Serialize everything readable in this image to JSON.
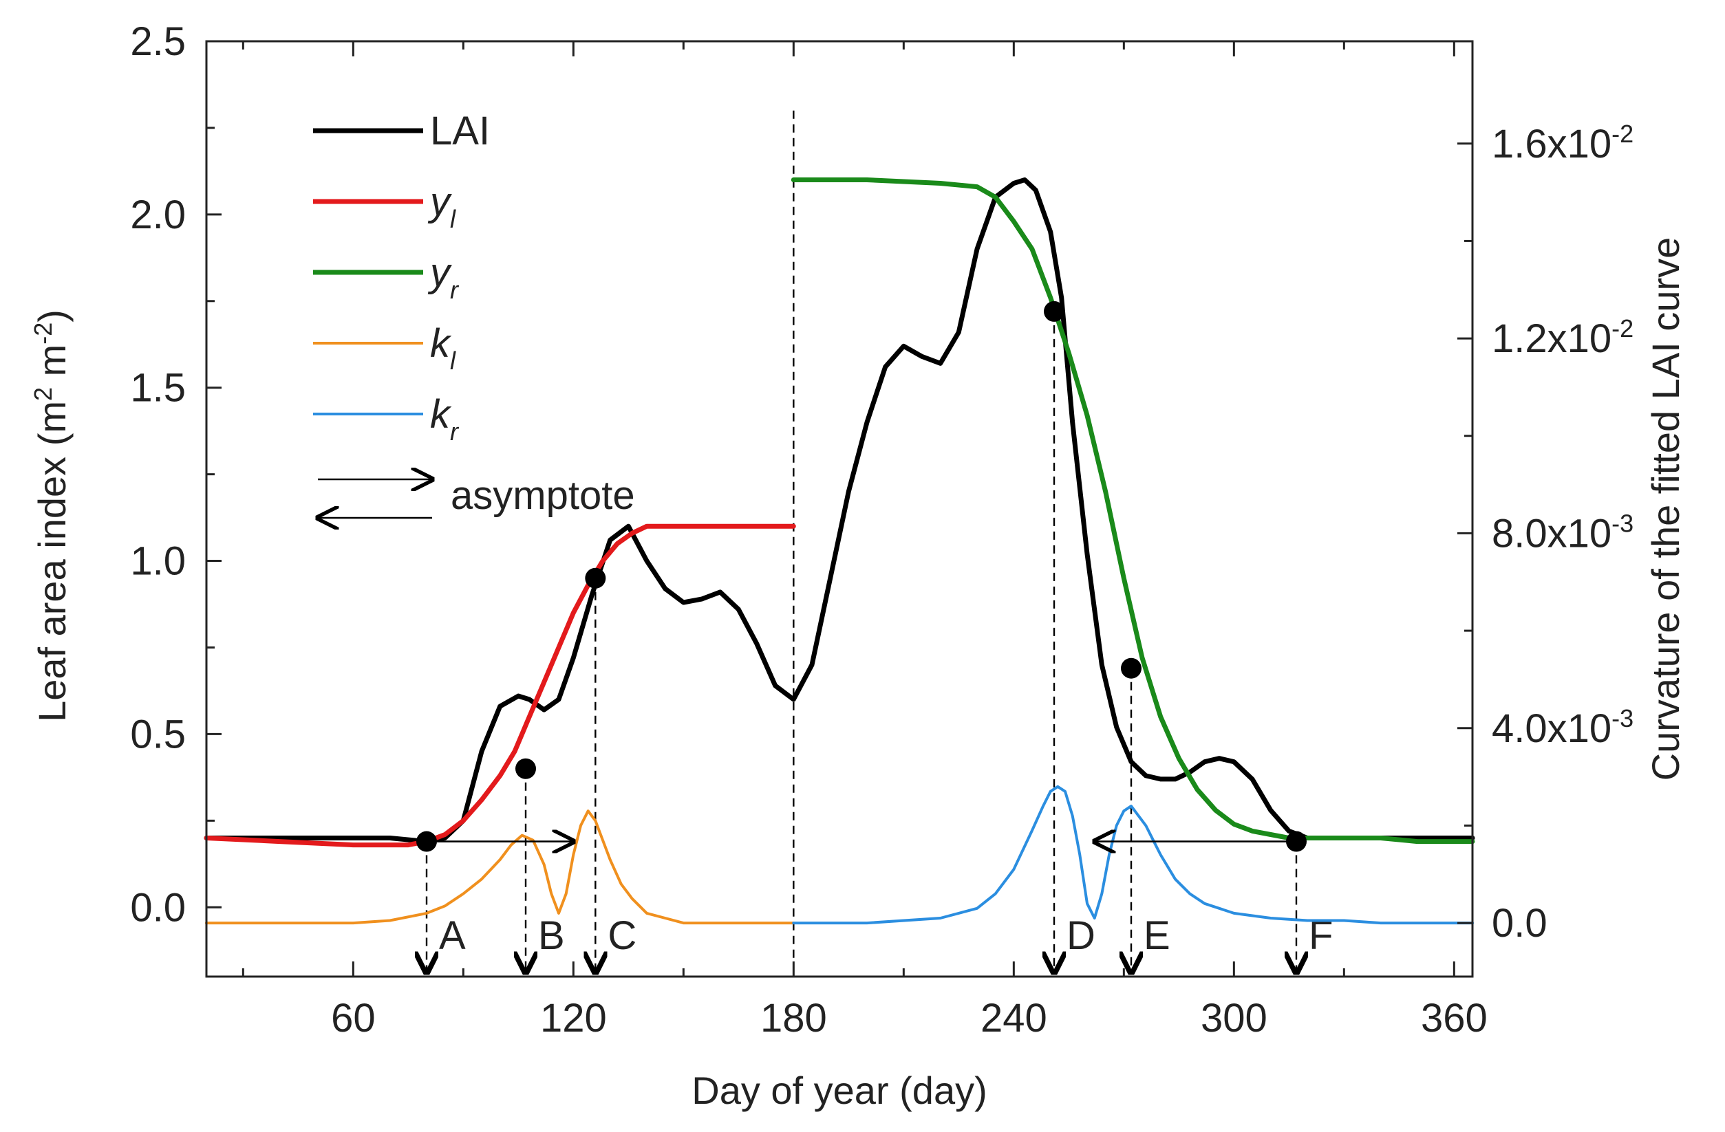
{
  "chart_data": {
    "type": "line",
    "title": "",
    "xlabel": "Day of year (day)",
    "ylabel": "Leaf area index (m² m⁻²)",
    "ylabel_parts": {
      "pre": "Leaf area index (m",
      "sup1": "2",
      "mid": " m",
      "sup2": "-2",
      "post": ")"
    },
    "y2label": "Curvature of the fitted LAI curve",
    "xlim": [
      20,
      365
    ],
    "ylim": [
      -0.2,
      2.5
    ],
    "y2lim": [
      -0.0011,
      0.0181
    ],
    "xticks": [
      60,
      120,
      180,
      240,
      300,
      360
    ],
    "xtick_labels": [
      "60",
      "120",
      "180",
      "240",
      "300",
      "360"
    ],
    "xticks_minor": [
      30,
      90,
      150,
      210,
      270,
      330
    ],
    "yticks": [
      0.0,
      0.5,
      1.0,
      1.5,
      2.0,
      2.5
    ],
    "ytick_labels": [
      "0.0",
      "0.5",
      "1.0",
      "1.5",
      "2.0",
      "2.5"
    ],
    "yticks_minor": [
      0.25,
      0.75,
      1.25,
      1.75,
      2.25
    ],
    "y2ticks": [
      0.0,
      0.004,
      0.008,
      0.012,
      0.016
    ],
    "y2tick_labels": [
      {
        "base": "0.0",
        "exp": ""
      },
      {
        "base": "4.0x10",
        "exp": "-3"
      },
      {
        "base": "8.0x10",
        "exp": "-3"
      },
      {
        "base": "1.2x10",
        "exp": "-2"
      },
      {
        "base": "1.6x10",
        "exp": "-2"
      }
    ],
    "y2ticks_minor": [
      0.002,
      0.006,
      0.01,
      0.014
    ],
    "legend": {
      "placement": "top-left",
      "entries": [
        {
          "key": "lai",
          "label": "LAI",
          "sub": "",
          "color": "#000000"
        },
        {
          "key": "yl",
          "label": "y",
          "sub": "l",
          "color": "#e31a1c"
        },
        {
          "key": "yr",
          "label": "y",
          "sub": "r",
          "color": "#1a8a1a"
        },
        {
          "key": "kl",
          "label": "k",
          "sub": "l",
          "color": "#f0901e"
        },
        {
          "key": "kr",
          "label": "k",
          "sub": "r",
          "color": "#2b8ee0"
        }
      ],
      "arrow_label": "asymptote"
    },
    "series": [
      {
        "name": "LAI",
        "axis": "left",
        "color": "#000000",
        "x": [
          20,
          40,
          60,
          70,
          80,
          85,
          90,
          95,
          100,
          105,
          108,
          112,
          116,
          120,
          125,
          130,
          135,
          140,
          145,
          150,
          155,
          160,
          165,
          170,
          175,
          180,
          185,
          190,
          195,
          200,
          205,
          210,
          215,
          220,
          225,
          230,
          235,
          240,
          243,
          246,
          250,
          253,
          256,
          260,
          264,
          268,
          272,
          276,
          280,
          284,
          288,
          292,
          296,
          300,
          305,
          310,
          315,
          320,
          325,
          330,
          340,
          350,
          360,
          365
        ],
        "y": [
          0.2,
          0.2,
          0.2,
          0.2,
          0.19,
          0.2,
          0.25,
          0.45,
          0.58,
          0.61,
          0.6,
          0.57,
          0.6,
          0.72,
          0.9,
          1.06,
          1.1,
          1.0,
          0.92,
          0.88,
          0.89,
          0.91,
          0.86,
          0.76,
          0.64,
          0.6,
          0.7,
          0.95,
          1.2,
          1.4,
          1.56,
          1.62,
          1.59,
          1.57,
          1.66,
          1.9,
          2.05,
          2.09,
          2.1,
          2.07,
          1.95,
          1.76,
          1.4,
          1.02,
          0.7,
          0.52,
          0.42,
          0.38,
          0.37,
          0.37,
          0.39,
          0.42,
          0.43,
          0.42,
          0.37,
          0.28,
          0.22,
          0.2,
          0.2,
          0.2,
          0.2,
          0.2,
          0.2,
          0.2
        ]
      },
      {
        "name": "yl",
        "axis": "left",
        "color": "#e31a1c",
        "x": [
          20,
          30,
          40,
          50,
          60,
          70,
          75,
          80,
          85,
          90,
          95,
          100,
          104,
          108,
          112,
          116,
          120,
          124,
          128,
          132,
          136,
          140,
          145,
          150,
          160,
          170,
          180
        ],
        "y": [
          0.2,
          0.195,
          0.19,
          0.185,
          0.18,
          0.18,
          0.18,
          0.19,
          0.21,
          0.25,
          0.31,
          0.38,
          0.45,
          0.55,
          0.65,
          0.75,
          0.85,
          0.93,
          1.0,
          1.05,
          1.08,
          1.1,
          1.1,
          1.1,
          1.1,
          1.1,
          1.1
        ]
      },
      {
        "name": "yr",
        "axis": "left",
        "color": "#1a8a1a",
        "x": [
          180,
          190,
          200,
          210,
          220,
          230,
          235,
          240,
          245,
          250,
          255,
          260,
          265,
          270,
          275,
          280,
          285,
          290,
          295,
          300,
          305,
          310,
          315,
          320,
          330,
          340,
          350,
          360,
          365
        ],
        "y": [
          2.1,
          2.1,
          2.1,
          2.095,
          2.09,
          2.08,
          2.05,
          1.98,
          1.9,
          1.76,
          1.6,
          1.42,
          1.2,
          0.95,
          0.72,
          0.55,
          0.43,
          0.34,
          0.28,
          0.24,
          0.22,
          0.21,
          0.2,
          0.2,
          0.2,
          0.2,
          0.19,
          0.19,
          0.19
        ]
      },
      {
        "name": "kl",
        "axis": "right",
        "color": "#f0901e",
        "x": [
          20,
          40,
          60,
          70,
          80,
          85,
          90,
          95,
          100,
          103,
          106,
          109,
          112,
          114,
          116,
          118,
          120,
          122,
          124,
          126,
          128,
          130,
          133,
          136,
          140,
          145,
          150,
          160,
          170,
          180
        ],
        "y": [
          0.0,
          0.0,
          0.0,
          5e-05,
          0.0002,
          0.00035,
          0.0006,
          0.0009,
          0.0013,
          0.0016,
          0.0018,
          0.0017,
          0.0012,
          0.0006,
          0.0002,
          0.0006,
          0.0014,
          0.002,
          0.0023,
          0.0021,
          0.0017,
          0.0013,
          0.0008,
          0.0005,
          0.0002,
          0.0001,
          0.0,
          0.0,
          0.0,
          0.0
        ]
      },
      {
        "name": "kr",
        "axis": "right",
        "color": "#2b8ee0",
        "x": [
          180,
          200,
          220,
          230,
          235,
          240,
          245,
          248,
          250,
          252,
          254,
          256,
          258,
          260,
          262,
          264,
          266,
          268,
          270,
          272,
          274,
          276,
          278,
          280,
          284,
          288,
          292,
          296,
          300,
          310,
          320,
          330,
          340,
          350,
          365
        ],
        "y": [
          0.0,
          0.0,
          0.0001,
          0.0003,
          0.0006,
          0.0011,
          0.0019,
          0.0024,
          0.0027,
          0.0028,
          0.0027,
          0.0022,
          0.0014,
          0.0004,
          0.0001,
          0.0006,
          0.0014,
          0.002,
          0.0023,
          0.0024,
          0.0022,
          0.002,
          0.0017,
          0.0014,
          0.0009,
          0.0006,
          0.0004,
          0.0003,
          0.0002,
          0.0001,
          5e-05,
          5e-05,
          0.0,
          0.0,
          0.0
        ]
      }
    ],
    "points": [
      {
        "x": 80,
        "y": 0.19
      },
      {
        "x": 107,
        "y": 0.4
      },
      {
        "x": 126,
        "y": 0.95
      },
      {
        "x": 251,
        "y": 1.72
      },
      {
        "x": 272,
        "y": 0.69
      },
      {
        "x": 317,
        "y": 0.19
      }
    ],
    "vertical_lines": [
      {
        "x": 80,
        "from": 0.19,
        "marker": "A"
      },
      {
        "x": 107,
        "from": 0.4,
        "marker": "B"
      },
      {
        "x": 126,
        "from": 0.95,
        "marker": "C"
      },
      {
        "x": 180,
        "from": 2.3,
        "marker": ""
      },
      {
        "x": 251,
        "from": 1.72,
        "marker": "D"
      },
      {
        "x": 272,
        "from": 0.69,
        "marker": "E"
      },
      {
        "x": 317,
        "from": 0.19,
        "marker": "F"
      }
    ],
    "asymptote_arrows": [
      {
        "from": 80,
        "to": 120,
        "y": 0.19
      },
      {
        "from": 317,
        "to": 262,
        "y": 0.19
      }
    ]
  }
}
